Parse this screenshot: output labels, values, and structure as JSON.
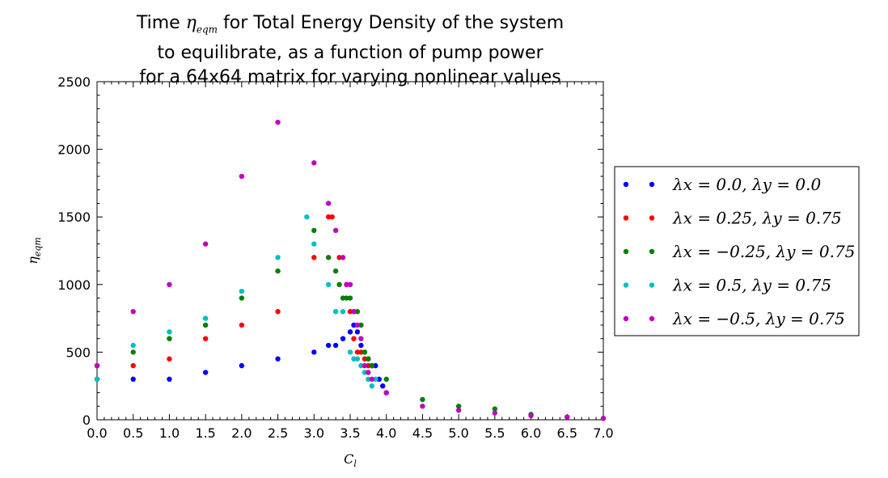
{
  "chart_data": {
    "type": "scatter",
    "title_lines": [
      "Time η_eqm for Total Energy Density of the system",
      "to equilibrate, as a function of pump power",
      "for a 64x64 matrix for varying nonlinear values"
    ],
    "xlabel": "C_l",
    "ylabel": "η_eqm",
    "xlim": [
      0,
      7
    ],
    "ylim": [
      0,
      2500
    ],
    "xticks": [
      "0.0",
      "0.5",
      "1.0",
      "1.5",
      "2.0",
      "2.5",
      "3.0",
      "3.5",
      "4.0",
      "4.5",
      "5.0",
      "5.5",
      "6.0",
      "6.5",
      "7.0"
    ],
    "yticks": [
      "0",
      "500",
      "1000",
      "1500",
      "2000",
      "2500"
    ],
    "grid": false,
    "legend_position": "right-outside",
    "series": [
      {
        "name": "λx = 0.0, λy = 0.0",
        "color": "#0000ff",
        "x": [
          0.0,
          0.5,
          1.0,
          1.5,
          2.0,
          2.5,
          3.0,
          3.2,
          3.3,
          3.4,
          3.5,
          3.55,
          3.6,
          3.65,
          3.7,
          3.75,
          3.8,
          3.85,
          3.9,
          3.95,
          4.0
        ],
        "y": [
          300,
          300,
          300,
          350,
          400,
          450,
          500,
          550,
          550,
          600,
          650,
          700,
          650,
          550,
          500,
          450,
          400,
          400,
          300,
          250,
          200
        ]
      },
      {
        "name": "λx = 0.25, λy = 0.75",
        "color": "#ff0000",
        "x": [
          0.0,
          0.5,
          1.0,
          1.5,
          2.0,
          2.5,
          3.0,
          3.2,
          3.25,
          3.35,
          3.45,
          3.5,
          3.55,
          3.6,
          3.65,
          3.7,
          3.75,
          3.8
        ],
        "y": [
          400,
          400,
          450,
          600,
          700,
          800,
          1200,
          1500,
          1500,
          1200,
          1000,
          800,
          600,
          500,
          500,
          450,
          400,
          400
        ]
      },
      {
        "name": "λx = −0.25, λy = 0.75",
        "color": "#008000",
        "x": [
          0.0,
          0.5,
          1.0,
          1.5,
          2.0,
          2.5,
          3.0,
          3.2,
          3.3,
          3.35,
          3.4,
          3.45,
          3.5,
          3.55,
          3.6,
          3.65,
          3.7,
          3.75,
          3.8,
          4.0,
          4.5,
          5.0,
          5.5,
          6.0,
          6.5,
          7.0
        ],
        "y": [
          400,
          500,
          600,
          700,
          900,
          1100,
          1400,
          1200,
          1100,
          1000,
          900,
          900,
          900,
          800,
          800,
          700,
          500,
          450,
          400,
          300,
          150,
          100,
          80,
          40,
          20,
          10
        ]
      },
      {
        "name": "λx = 0.5, λy = 0.75",
        "color": "#00bfbf",
        "x": [
          0.0,
          0.5,
          1.0,
          1.5,
          2.0,
          2.5,
          2.9,
          3.0,
          3.2,
          3.3,
          3.4,
          3.5,
          3.55,
          3.6,
          3.65,
          3.7,
          3.75,
          3.8,
          3.85
        ],
        "y": [
          300,
          550,
          650,
          750,
          950,
          1200,
          1500,
          1300,
          1000,
          800,
          800,
          500,
          450,
          450,
          400,
          350,
          300,
          250,
          300
        ]
      },
      {
        "name": "λx = −0.5, λy = 0.75",
        "color": "#bf00bf",
        "x": [
          0.0,
          0.5,
          1.0,
          1.5,
          2.0,
          2.5,
          3.0,
          3.2,
          3.3,
          3.4,
          3.45,
          3.5,
          3.55,
          3.6,
          3.65,
          3.7,
          3.75,
          3.8,
          4.0,
          4.5,
          5.0,
          5.5,
          6.0,
          6.5,
          7.0
        ],
        "y": [
          400,
          800,
          1000,
          1300,
          1800,
          2200,
          1900,
          1600,
          1400,
          1200,
          1000,
          1000,
          800,
          700,
          600,
          400,
          350,
          300,
          200,
          100,
          70,
          50,
          30,
          20,
          10
        ]
      }
    ]
  }
}
